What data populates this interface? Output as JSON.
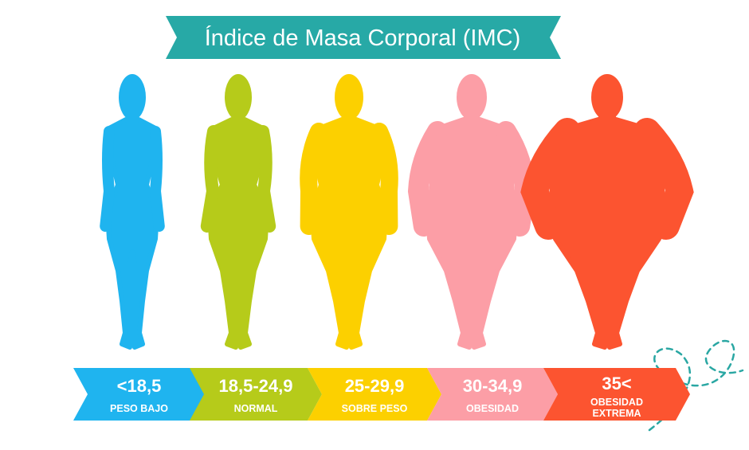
{
  "title": "Índice de Masa Corporal (IMC)",
  "colors": {
    "banner": "#27a9a6",
    "banner_dark": "#1f7f7d",
    "dashes": "#2aa7a3"
  },
  "categories": [
    {
      "value": "<18,5",
      "label_lines": [
        "PESO BAJO"
      ],
      "color": "#1fb4ef",
      "figure": "thin"
    },
    {
      "value": "18,5-24,9",
      "label_lines": [
        "NORMAL"
      ],
      "color": "#b6cb1a",
      "figure": "normal"
    },
    {
      "value": "25-29,9",
      "label_lines": [
        "SOBRE PESO"
      ],
      "color": "#fcd000",
      "figure": "overweight"
    },
    {
      "value": "30-34,9",
      "label_lines": [
        "OBESIDAD"
      ],
      "color": "#fc9ea6",
      "figure": "obese"
    },
    {
      "value": "35<",
      "label_lines": [
        "OBESIDAD",
        "EXTREMA"
      ],
      "color": "#fc5430",
      "figure": "extreme"
    }
  ]
}
